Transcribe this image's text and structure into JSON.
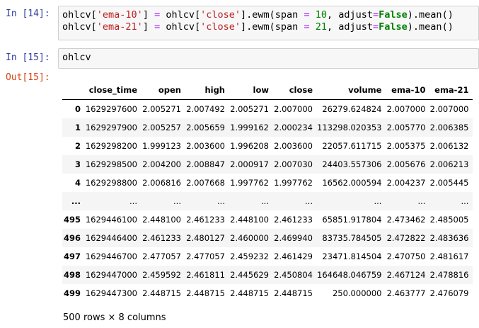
{
  "cells": [
    {
      "prompt": "In [14]:",
      "lines": [
        [
          "ohlcv[",
          "'ema-10'",
          "] ",
          "=",
          " ohlcv[",
          "'close'",
          "].ewm(span ",
          "=",
          " ",
          "10",
          ", adjust",
          "=",
          "False",
          ").mean()"
        ],
        [
          "ohlcv[",
          "'ema-21'",
          "] ",
          "=",
          " ohlcv[",
          "'close'",
          "].ewm(span ",
          "=",
          " ",
          "21",
          ", adjust",
          "=",
          "False",
          ").mean()"
        ]
      ]
    },
    {
      "prompt": "In [15]:",
      "lines": [
        [
          "ohlcv"
        ]
      ]
    }
  ],
  "output": {
    "prompt": "Out[15]:",
    "table": {
      "header": [
        null,
        "close_time",
        "open",
        "high",
        "low",
        "close",
        "volume",
        "ema-10",
        "ema-21"
      ],
      "rows": [
        [
          "0",
          "1629297600",
          "2.005271",
          "2.007492",
          "2.005271",
          "2.007000",
          "26279.624824",
          "2.007000",
          "2.007000"
        ],
        [
          "1",
          "1629297900",
          "2.005257",
          "2.005659",
          "1.999162",
          "2.000234",
          "113298.020353",
          "2.005770",
          "2.006385"
        ],
        [
          "2",
          "1629298200",
          "1.999123",
          "2.003600",
          "1.996208",
          "2.003600",
          "22057.611715",
          "2.005375",
          "2.006132"
        ],
        [
          "3",
          "1629298500",
          "2.004200",
          "2.008847",
          "2.000917",
          "2.007030",
          "24403.557306",
          "2.005676",
          "2.006213"
        ],
        [
          "4",
          "1629298800",
          "2.006816",
          "2.007668",
          "1.997762",
          "1.997762",
          "16562.000594",
          "2.004237",
          "2.005445"
        ],
        [
          "...",
          "...",
          "...",
          "...",
          "...",
          "...",
          "...",
          "...",
          "..."
        ],
        [
          "495",
          "1629446100",
          "2.448100",
          "2.461233",
          "2.448100",
          "2.461233",
          "65851.917804",
          "2.473462",
          "2.485005"
        ],
        [
          "496",
          "1629446400",
          "2.461233",
          "2.480127",
          "2.460000",
          "2.469940",
          "83735.784505",
          "2.472822",
          "2.483636"
        ],
        [
          "497",
          "1629446700",
          "2.477057",
          "2.477057",
          "2.459232",
          "2.461429",
          "23471.814504",
          "2.470750",
          "2.481617"
        ],
        [
          "498",
          "1629447000",
          "2.459592",
          "2.461811",
          "2.445629",
          "2.450804",
          "164648.046759",
          "2.467124",
          "2.478816"
        ],
        [
          "499",
          "1629447300",
          "2.448715",
          "2.448715",
          "2.448715",
          "2.448715",
          "250.000000",
          "2.463777",
          "2.476079"
        ]
      ]
    },
    "footer": "500 rows × 8 columns"
  }
}
